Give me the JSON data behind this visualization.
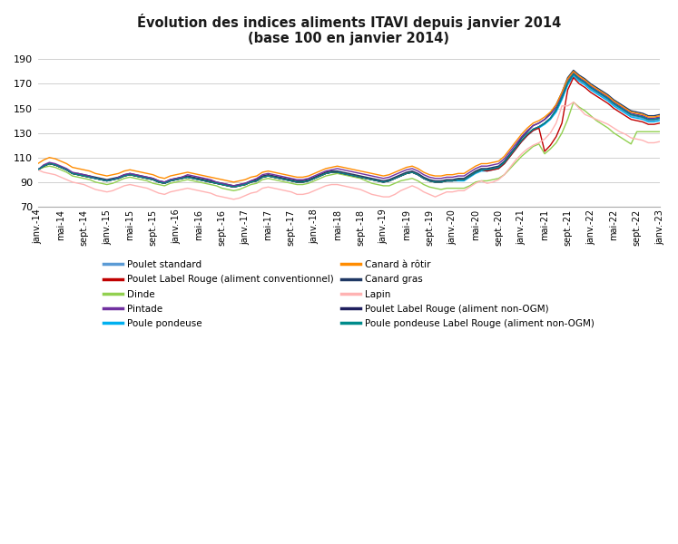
{
  "title_line1": "Évolution des indices aliments ITAVI depuis janvier 2014",
  "title_line2": "(base 100 en janvier 2014)",
  "ylim": [
    70,
    195
  ],
  "yticks": [
    70,
    90,
    110,
    130,
    150,
    170,
    190
  ],
  "background_color": "#ffffff",
  "grid_color": "#d0d0d0",
  "series": {
    "Poulet standard": {
      "color": "#5B9BD5",
      "values": [
        100,
        103,
        105,
        104,
        102,
        100,
        97,
        96,
        95,
        94,
        93,
        92,
        91,
        92,
        93,
        95,
        96,
        95,
        94,
        93,
        92,
        90,
        89,
        91,
        92,
        93,
        94,
        93,
        92,
        91,
        90,
        89,
        88,
        87,
        86,
        87,
        88,
        90,
        91,
        94,
        95,
        94,
        93,
        92,
        91,
        90,
        90,
        91,
        93,
        95,
        97,
        98,
        98,
        97,
        96,
        95,
        94,
        93,
        92,
        91,
        90,
        91,
        93,
        95,
        97,
        98,
        96,
        93,
        91,
        90,
        90,
        91,
        91,
        92,
        92,
        95,
        98,
        100,
        100,
        101,
        102,
        106,
        112,
        118,
        124,
        129,
        133,
        135,
        138,
        142,
        148,
        158,
        170,
        177,
        173,
        170,
        166,
        163,
        160,
        157,
        153,
        150,
        147,
        144,
        143,
        142,
        140,
        140,
        141
      ]
    },
    "Poulet Label Rouge (aliment conventionnel)": {
      "color": "#C00000",
      "values": [
        100,
        103,
        105,
        104,
        102,
        100,
        97,
        96,
        95,
        94,
        93,
        92,
        91,
        92,
        93,
        95,
        96,
        95,
        94,
        93,
        92,
        90,
        89,
        91,
        92,
        93,
        94,
        93,
        92,
        91,
        90,
        89,
        88,
        87,
        86,
        87,
        88,
        90,
        91,
        94,
        95,
        94,
        93,
        92,
        91,
        90,
        90,
        91,
        93,
        95,
        97,
        98,
        98,
        97,
        96,
        95,
        94,
        93,
        92,
        91,
        90,
        91,
        93,
        95,
        97,
        98,
        96,
        93,
        91,
        90,
        90,
        91,
        91,
        92,
        92,
        95,
        98,
        100,
        99,
        100,
        101,
        105,
        111,
        117,
        123,
        128,
        132,
        134,
        115,
        120,
        127,
        138,
        165,
        175,
        170,
        167,
        163,
        160,
        157,
        154,
        150,
        147,
        144,
        141,
        140,
        139,
        137,
        137,
        138
      ]
    },
    "Dinde": {
      "color": "#92D050",
      "values": [
        100,
        102,
        103,
        102,
        100,
        98,
        95,
        94,
        93,
        92,
        90,
        89,
        88,
        89,
        91,
        93,
        94,
        93,
        92,
        91,
        89,
        88,
        87,
        89,
        90,
        91,
        92,
        91,
        90,
        89,
        88,
        87,
        85,
        84,
        83,
        84,
        86,
        88,
        89,
        92,
        93,
        92,
        91,
        90,
        89,
        88,
        88,
        89,
        91,
        93,
        95,
        96,
        97,
        96,
        95,
        94,
        93,
        91,
        89,
        88,
        87,
        87,
        89,
        91,
        92,
        93,
        91,
        88,
        86,
        85,
        84,
        85,
        85,
        85,
        85,
        87,
        90,
        91,
        91,
        92,
        93,
        96,
        101,
        106,
        111,
        115,
        119,
        121,
        113,
        117,
        122,
        130,
        141,
        155,
        151,
        148,
        144,
        140,
        137,
        134,
        130,
        127,
        124,
        121,
        131,
        131,
        131,
        131,
        131
      ]
    },
    "Pintade": {
      "color": "#7030A0",
      "values": [
        100,
        104,
        106,
        105,
        103,
        101,
        98,
        97,
        96,
        95,
        93,
        92,
        91,
        92,
        94,
        96,
        97,
        96,
        95,
        94,
        93,
        91,
        90,
        92,
        93,
        94,
        96,
        95,
        94,
        93,
        92,
        90,
        89,
        88,
        87,
        88,
        89,
        91,
        93,
        96,
        97,
        96,
        95,
        94,
        93,
        92,
        92,
        93,
        95,
        97,
        99,
        100,
        101,
        100,
        99,
        98,
        97,
        96,
        95,
        94,
        93,
        94,
        96,
        98,
        100,
        101,
        99,
        96,
        94,
        93,
        93,
        94,
        94,
        95,
        95,
        98,
        101,
        103,
        103,
        104,
        105,
        109,
        115,
        121,
        127,
        132,
        136,
        138,
        141,
        145,
        151,
        161,
        173,
        179,
        175,
        172,
        168,
        165,
        162,
        159,
        155,
        152,
        149,
        146,
        145,
        144,
        142,
        142,
        143
      ]
    },
    "Poule pondeuse": {
      "color": "#00B0F0",
      "values": [
        100,
        103,
        105,
        104,
        102,
        100,
        97,
        96,
        95,
        94,
        93,
        92,
        91,
        92,
        93,
        95,
        96,
        95,
        94,
        93,
        92,
        90,
        89,
        91,
        92,
        93,
        94,
        93,
        92,
        91,
        90,
        89,
        88,
        87,
        86,
        87,
        88,
        90,
        91,
        94,
        95,
        94,
        93,
        92,
        91,
        90,
        90,
        91,
        93,
        95,
        97,
        98,
        98,
        97,
        96,
        95,
        94,
        93,
        92,
        91,
        90,
        91,
        93,
        95,
        97,
        98,
        96,
        93,
        91,
        90,
        90,
        91,
        91,
        91,
        91,
        94,
        97,
        99,
        99,
        100,
        101,
        105,
        111,
        117,
        123,
        128,
        132,
        134,
        137,
        141,
        147,
        157,
        169,
        176,
        172,
        169,
        165,
        162,
        159,
        156,
        152,
        149,
        146,
        143,
        142,
        141,
        139,
        139,
        140
      ]
    },
    "Canard à rôtir": {
      "color": "#FF8C00",
      "values": [
        105,
        108,
        110,
        109,
        107,
        105,
        102,
        101,
        100,
        99,
        97,
        96,
        95,
        96,
        97,
        99,
        100,
        99,
        98,
        97,
        96,
        94,
        93,
        95,
        96,
        97,
        98,
        97,
        96,
        95,
        94,
        93,
        92,
        91,
        90,
        91,
        92,
        94,
        95,
        98,
        99,
        98,
        97,
        96,
        95,
        94,
        94,
        95,
        97,
        99,
        101,
        102,
        103,
        102,
        101,
        100,
        99,
        98,
        97,
        96,
        95,
        96,
        98,
        100,
        102,
        103,
        101,
        98,
        96,
        95,
        95,
        96,
        96,
        97,
        97,
        100,
        103,
        105,
        105,
        106,
        107,
        111,
        117,
        123,
        129,
        134,
        138,
        140,
        143,
        147,
        153,
        163,
        174,
        180,
        176,
        173,
        169,
        166,
        163,
        160,
        156,
        153,
        150,
        147,
        146,
        145,
        143,
        143,
        144
      ]
    },
    "Canard gras": {
      "color": "#1F3864",
      "values": [
        100,
        103,
        105,
        104,
        102,
        100,
        97,
        97,
        96,
        95,
        94,
        93,
        92,
        93,
        94,
        96,
        97,
        96,
        95,
        94,
        93,
        91,
        90,
        92,
        93,
        94,
        95,
        94,
        93,
        92,
        91,
        90,
        89,
        88,
        87,
        88,
        89,
        91,
        92,
        95,
        96,
        95,
        94,
        93,
        92,
        91,
        91,
        92,
        94,
        96,
        98,
        99,
        99,
        98,
        97,
        96,
        95,
        94,
        93,
        92,
        91,
        92,
        94,
        96,
        98,
        99,
        97,
        94,
        92,
        91,
        91,
        92,
        92,
        93,
        93,
        96,
        99,
        101,
        101,
        102,
        103,
        107,
        113,
        119,
        126,
        131,
        136,
        138,
        141,
        146,
        153,
        163,
        175,
        181,
        177,
        174,
        170,
        167,
        164,
        161,
        157,
        154,
        151,
        148,
        147,
        146,
        144,
        144,
        145
      ]
    },
    "Lapin": {
      "color": "#FFB3B3",
      "values": [
        100,
        98,
        97,
        96,
        94,
        92,
        90,
        89,
        88,
        86,
        84,
        83,
        82,
        83,
        85,
        87,
        88,
        87,
        86,
        85,
        83,
        81,
        80,
        82,
        83,
        84,
        85,
        84,
        83,
        82,
        81,
        79,
        78,
        77,
        76,
        77,
        79,
        81,
        82,
        85,
        86,
        85,
        84,
        83,
        82,
        80,
        80,
        81,
        83,
        85,
        87,
        88,
        88,
        87,
        86,
        85,
        84,
        82,
        80,
        79,
        78,
        78,
        80,
        83,
        85,
        87,
        85,
        82,
        80,
        78,
        80,
        82,
        82,
        83,
        83,
        86,
        89,
        91,
        89,
        90,
        92,
        96,
        102,
        108,
        113,
        117,
        120,
        122,
        125,
        130,
        138,
        152,
        152,
        155,
        150,
        145,
        143,
        141,
        139,
        137,
        134,
        131,
        129,
        126,
        125,
        124,
        122,
        122,
        123
      ]
    },
    "Poulet Label Rouge (aliment non-OGM)": {
      "color": "#1F1F5E",
      "values": [
        100,
        103,
        105,
        104,
        102,
        100,
        97,
        96,
        95,
        94,
        93,
        92,
        91,
        92,
        93,
        95,
        96,
        95,
        94,
        93,
        92,
        90,
        89,
        91,
        92,
        93,
        94,
        93,
        92,
        91,
        90,
        89,
        88,
        87,
        86,
        87,
        88,
        90,
        91,
        94,
        95,
        94,
        93,
        92,
        91,
        90,
        90,
        91,
        93,
        95,
        97,
        98,
        98,
        97,
        96,
        95,
        94,
        93,
        92,
        91,
        90,
        91,
        93,
        95,
        97,
        98,
        96,
        93,
        91,
        90,
        90,
        91,
        91,
        92,
        92,
        95,
        98,
        100,
        100,
        101,
        102,
        106,
        112,
        118,
        124,
        129,
        133,
        135,
        138,
        142,
        149,
        159,
        171,
        178,
        174,
        171,
        167,
        164,
        161,
        158,
        154,
        151,
        148,
        145,
        144,
        143,
        141,
        141,
        142
      ]
    },
    "Poule pondeuse Label Rouge (aliment non-OGM)": {
      "color": "#008B8B",
      "values": [
        100,
        103,
        105,
        104,
        102,
        100,
        97,
        96,
        95,
        94,
        93,
        92,
        91,
        92,
        93,
        95,
        96,
        95,
        94,
        93,
        92,
        90,
        89,
        91,
        92,
        93,
        94,
        93,
        92,
        91,
        90,
        89,
        88,
        87,
        86,
        87,
        88,
        90,
        91,
        94,
        95,
        94,
        93,
        92,
        91,
        90,
        90,
        91,
        93,
        95,
        97,
        98,
        98,
        97,
        96,
        95,
        94,
        93,
        92,
        91,
        90,
        91,
        93,
        95,
        97,
        98,
        96,
        93,
        91,
        90,
        90,
        91,
        91,
        92,
        92,
        95,
        98,
        100,
        100,
        101,
        102,
        106,
        112,
        118,
        124,
        129,
        133,
        135,
        138,
        142,
        149,
        159,
        171,
        178,
        174,
        171,
        167,
        164,
        161,
        158,
        154,
        151,
        148,
        145,
        144,
        143,
        141,
        141,
        142
      ]
    }
  },
  "x_tick_labels": [
    "janv.-14",
    "mai-14",
    "sept.-14",
    "janv.-15",
    "mai-15",
    "sept.-15",
    "janv.-16",
    "mai-16",
    "sept.-16",
    "janv.-17",
    "mai-17",
    "sept.-17",
    "janv.-18",
    "mai-18",
    "sept.-18",
    "janv.-19",
    "mai-19",
    "sept.-19",
    "janv.-20",
    "mai-20",
    "sept.-20",
    "janv.-21",
    "mai-21",
    "sept.-21",
    "janv.-22",
    "mai-22",
    "sept.-22",
    "janv.-23"
  ],
  "x_tick_positions": [
    0,
    4,
    8,
    12,
    16,
    20,
    24,
    28,
    32,
    36,
    40,
    44,
    48,
    52,
    56,
    60,
    64,
    68,
    72,
    76,
    80,
    84,
    88,
    92,
    96,
    100,
    104,
    108
  ],
  "legend_col1": [
    "Poulet standard",
    "Dinde",
    "Poule pondeuse",
    "Canard gras",
    "Poulet Label Rouge (aliment non-OGM)"
  ],
  "legend_col2": [
    "Poulet Label Rouge (aliment conventionnel)",
    "Pintade",
    "Canard à rôtir",
    "Lapin",
    "Poule pondeuse Label Rouge (aliment non-OGM)"
  ]
}
